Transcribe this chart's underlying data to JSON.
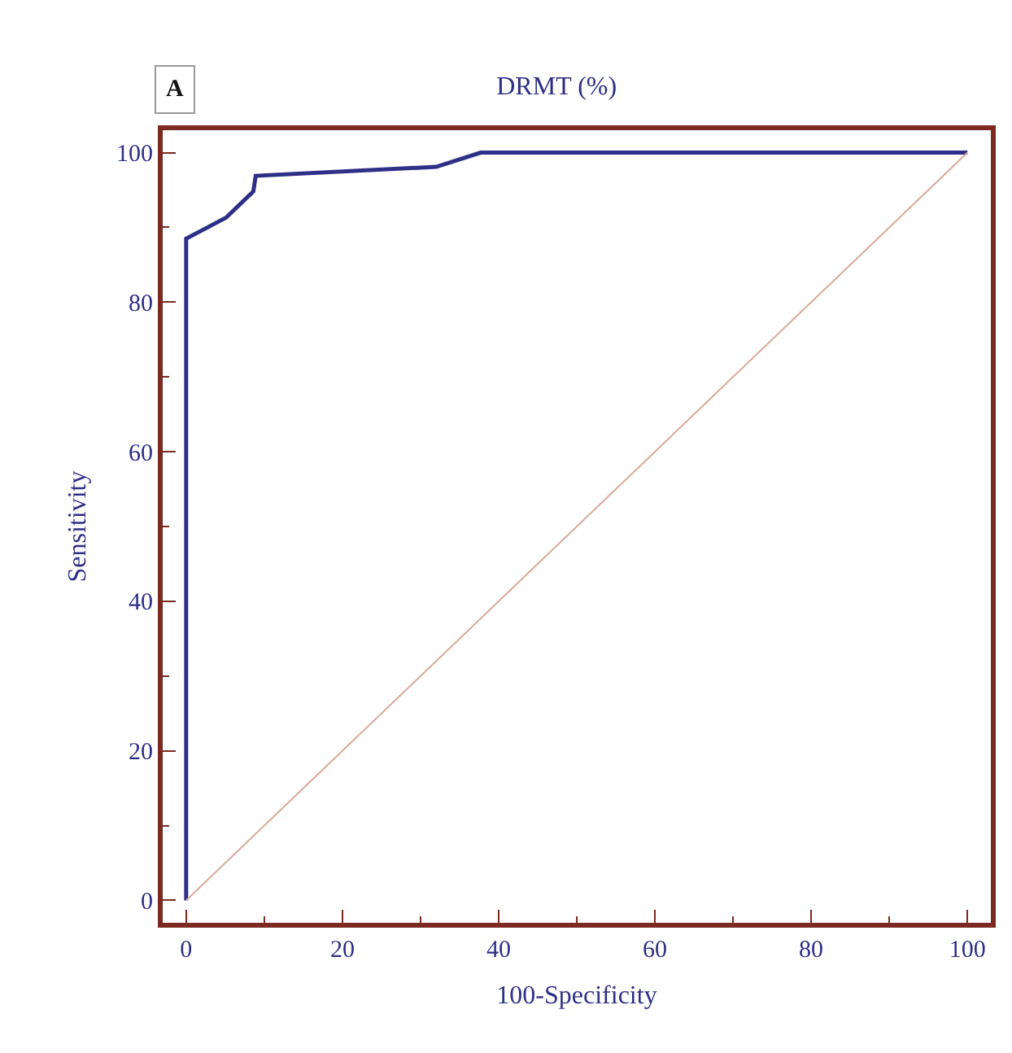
{
  "chart_data": {
    "type": "line",
    "title": "DRMT (%)",
    "xlabel": "100-Specificity",
    "ylabel": "Sensitivity",
    "annotations": [
      "A"
    ],
    "series": [
      {
        "color": "#2e2f86",
        "x": [
          0,
          0,
          5.1,
          8.6,
          8.9,
          32,
          37.7,
          100
        ],
        "values": [
          0,
          88.5,
          91.3,
          94.8,
          96.9,
          98.1,
          100,
          100
        ]
      },
      {
        "color": "#d9a89a",
        "x": [
          0,
          100
        ],
        "values": [
          0,
          100
        ]
      }
    ],
    "xlim": [
      -3,
      103
    ],
    "ylim": [
      -3,
      103
    ],
    "xticks": [
      0,
      20,
      40,
      60,
      80,
      100
    ],
    "yticks": [
      0,
      20,
      40,
      60,
      80,
      100
    ],
    "marker": "none"
  }
}
